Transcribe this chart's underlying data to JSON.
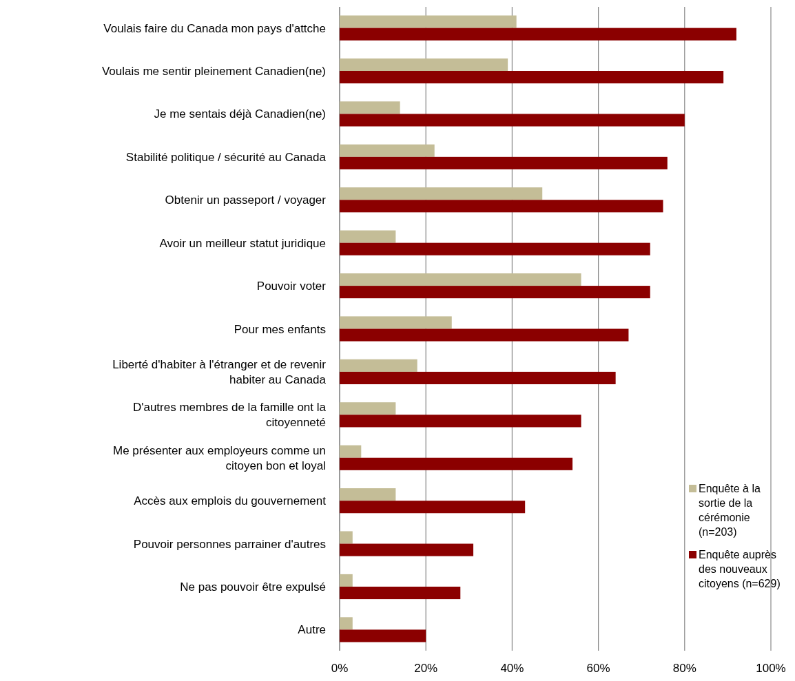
{
  "chart_data": {
    "type": "bar",
    "orientation": "horizontal",
    "categories": [
      "Voulais faire du Canada mon pays d'attche",
      "Voulais me sentir pleinement Canadien(ne)",
      "Je me sentais déjà Canadien(ne)",
      "Stabilité politique / sécurité au Canada",
      "Obtenir un passeport / voyager",
      "Avoir un meilleur statut juridique",
      "Pouvoir voter",
      "Pour mes enfants",
      "Liberté d'habiter à l'étranger et de revenir\nhabiter au Canada",
      "D'autres membres de la famille ont la\ncitoyenneté",
      "Me présenter aux employeurs comme un\ncitoyen bon et loyal",
      "Accès aux emplois du gouvernement",
      "Pouvoir personnes parrainer d'autres",
      "Ne pas pouvoir être expulsé",
      "Autre"
    ],
    "series": [
      {
        "name": "Enquête à  la\nsortie de la\ncérémonie\n(n=203)",
        "color": "#c4bd97",
        "values": [
          41,
          39,
          14,
          22,
          47,
          13,
          56,
          26,
          18,
          13,
          5,
          13,
          3,
          3,
          3
        ]
      },
      {
        "name": "Enquête auprès\ndes nouveaux\ncitoyens  (n=629)",
        "color": "#8b0000",
        "values": [
          92,
          89,
          80,
          76,
          75,
          72,
          72,
          67,
          64,
          56,
          54,
          43,
          31,
          28,
          20
        ]
      }
    ],
    "xlim": [
      0,
      100
    ],
    "xticks": [
      {
        "value": 0,
        "label": "0%"
      },
      {
        "value": 20,
        "label": "20%"
      },
      {
        "value": 40,
        "label": "40%"
      },
      {
        "value": 60,
        "label": "60%"
      },
      {
        "value": 80,
        "label": "80%"
      },
      {
        "value": 100,
        "label": "100%"
      }
    ],
    "grid": "x",
    "legend": "bottom right"
  }
}
